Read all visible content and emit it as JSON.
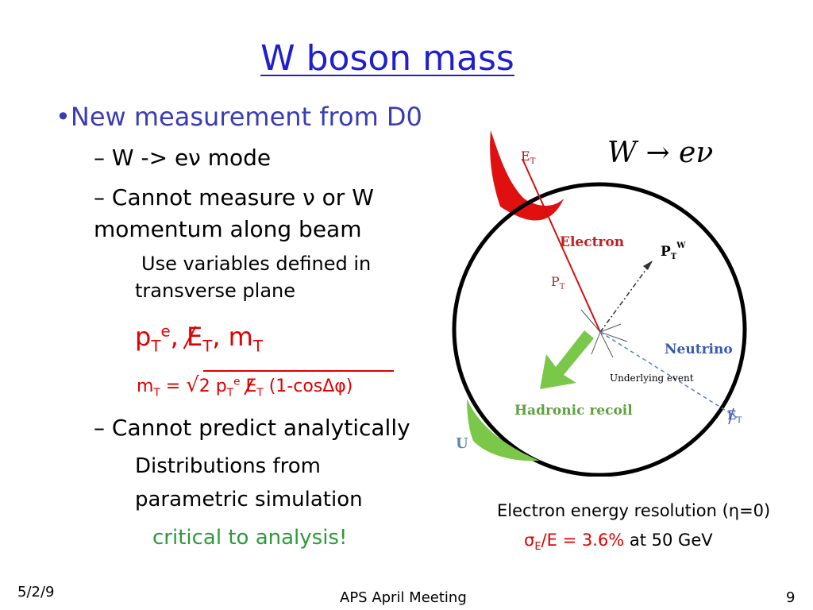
{
  "title": "W boson mass",
  "bullets": {
    "main": "•New measurement from D0",
    "mode": "– W -> eν mode",
    "cannot1_line1": "– Cannot measure ν or W",
    "cannot1_line2": "momentum along beam",
    "use_line1": "Use variables defined in",
    "use_line2": "transverse plane",
    "cannot2": "– Cannot predict analytically",
    "dist_line1": "Distributions from",
    "dist_line2": "parametric simulation",
    "critical": "critical to analysis!"
  },
  "formula": {
    "p": "p",
    "T": "T",
    "e": "e",
    "E": "E",
    "comma": ",",
    "m": "m",
    "mt_eq": "=",
    "two_p": "2 p",
    "cos_part": "(1-cosΔφ)"
  },
  "diagram": {
    "heading": "W → eν",
    "et_label": "E",
    "et_sub": "T",
    "electron": "Electron",
    "pw": "P",
    "pw_sub": "T",
    "pw_sup": "W",
    "pt": "P",
    "pt_sub": "T",
    "neutrino": "Neutrino",
    "underlying": "Underlying event",
    "hadronic": "Hadronic recoil",
    "etmiss": "E",
    "etmiss_sub": "T",
    "u": "U"
  },
  "resolution": {
    "line1": "Electron energy resolution (η=0)",
    "sigma": "σ",
    "sigma_sub": "E",
    "frac": "/E = 3.6%",
    "rest": " at 50 GeV"
  },
  "footer": {
    "date": "5/2/9",
    "meeting": "APS April Meeting",
    "page": "9"
  },
  "colors": {
    "title": "#1f1fd0",
    "bullet": "#3b3bb5",
    "red": "#e00000",
    "green": "#2e9a3a"
  }
}
